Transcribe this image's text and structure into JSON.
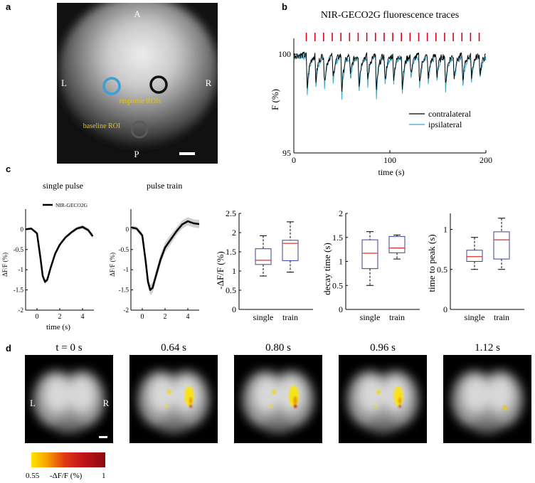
{
  "panel_labels": [
    "a",
    "b",
    "c",
    "d"
  ],
  "panel_a": {
    "orientation": {
      "anterior": "A",
      "posterior": "P",
      "left": "L",
      "right": "R"
    },
    "roi_labels": {
      "response": "response ROIs",
      "baseline": "baseline ROI"
    },
    "colors": {
      "left_roi": "#3b9fd8",
      "right_roi": "#111111",
      "baseline_roi": "#5a5a5a",
      "roi_text": "#e6c21a"
    }
  },
  "chart_data": [
    {
      "id": "b",
      "type": "line",
      "title": "NIR-GECO2G fluorescence traces",
      "xlabel": "time (s)",
      "ylabel": "F (%)",
      "xlim": [
        0,
        200
      ],
      "ylim": [
        95,
        100.8
      ],
      "xticks": [
        "0",
        "100",
        "200"
      ],
      "yticks": [
        "95",
        "100"
      ],
      "stimulus_times_s": [
        13,
        22,
        31,
        40,
        49,
        58,
        67,
        76,
        85,
        94,
        103,
        112,
        121,
        130,
        139,
        148,
        157,
        166,
        175,
        184,
        193
      ],
      "dip_depth_pct": [
        1.8,
        1.4,
        1.5,
        1.2,
        1.9,
        1.1,
        1.6,
        1.3,
        2.0,
        1.4,
        1.2,
        1.7,
        1.0,
        1.5,
        1.3,
        1.1,
        1.6,
        1.2,
        1.4,
        1.1,
        1.0
      ],
      "series": [
        {
          "name": "contralateral",
          "color": "#000000",
          "baseline": 99.95
        },
        {
          "name": "ipsilateral",
          "color": "#3aa7c9",
          "baseline": 99.9
        }
      ],
      "stimulus_color": "#e0001b"
    },
    {
      "id": "c-single",
      "type": "area",
      "title": "single pulse",
      "ylabel": "ΔF/F (%)",
      "xlabel": "time (s)",
      "xlim": [
        -1,
        5
      ],
      "ylim": [
        -2,
        0.5
      ],
      "xticks": [
        "0",
        "2",
        "4"
      ],
      "yticks": [
        "0",
        "-0.5",
        "-1",
        "-1.5",
        "-2"
      ],
      "legend": "NIR-GECO2G",
      "t": [
        -1,
        -0.5,
        0,
        0.3,
        0.5,
        0.7,
        0.9,
        1.2,
        1.6,
        2,
        2.5,
        3,
        3.5,
        4,
        4.5,
        4.9
      ],
      "mean": [
        0,
        0.02,
        -0.1,
        -0.7,
        -1.15,
        -1.3,
        -1.25,
        -0.95,
        -0.6,
        -0.38,
        -0.2,
        -0.08,
        0.02,
        0.06,
        -0.02,
        -0.17
      ],
      "sem": [
        0.03,
        0.03,
        0.04,
        0.05,
        0.06,
        0.06,
        0.06,
        0.06,
        0.05,
        0.05,
        0.04,
        0.04,
        0.04,
        0.05,
        0.05,
        0.05
      ]
    },
    {
      "id": "c-train",
      "type": "area",
      "title": "pulse train",
      "ylabel": "ΔF/F (%)",
      "xlim": [
        -1,
        5
      ],
      "ylim": [
        -2,
        0.5
      ],
      "xticks": [
        "0",
        "2",
        "4"
      ],
      "yticks": [
        "0",
        "-0.5",
        "-1",
        "-1.5",
        "-2"
      ],
      "t": [
        -1,
        -0.5,
        0,
        0.3,
        0.5,
        0.7,
        0.9,
        1.2,
        1.6,
        2,
        2.5,
        3,
        3.5,
        4,
        4.5,
        5
      ],
      "mean": [
        0.05,
        0.02,
        -0.15,
        -0.8,
        -1.3,
        -1.5,
        -1.45,
        -1.15,
        -0.75,
        -0.45,
        -0.25,
        -0.05,
        0.12,
        0.2,
        0.15,
        0.13
      ],
      "sem": [
        0.05,
        0.05,
        0.07,
        0.1,
        0.12,
        0.13,
        0.13,
        0.13,
        0.13,
        0.12,
        0.12,
        0.1,
        0.1,
        0.1,
        0.1,
        0.1
      ]
    },
    {
      "id": "c-box-amplitude",
      "type": "box",
      "ylabel": "-ΔF/F (%)",
      "ylim": [
        0,
        2.5
      ],
      "yticks": [
        "0",
        "0.5",
        "1",
        "1.5",
        "2",
        "2.5"
      ],
      "categories": [
        "single",
        "train"
      ],
      "boxes": [
        {
          "min": 0.87,
          "q1": 1.17,
          "median": 1.28,
          "q3": 1.58,
          "max": 1.92
        },
        {
          "min": 0.97,
          "q1": 1.27,
          "median": 1.72,
          "q3": 1.8,
          "max": 2.28
        }
      ]
    },
    {
      "id": "c-box-decay",
      "type": "box",
      "ylabel": "decay time (s)",
      "ylim": [
        0,
        2
      ],
      "yticks": [
        "0",
        "0.5",
        "1",
        "1.5",
        "2"
      ],
      "categories": [
        "single",
        "train"
      ],
      "boxes": [
        {
          "min": 0.5,
          "q1": 0.85,
          "median": 1.17,
          "q3": 1.45,
          "max": 1.62
        },
        {
          "min": 1.05,
          "q1": 1.18,
          "median": 1.28,
          "q3": 1.52,
          "max": 1.55
        }
      ]
    },
    {
      "id": "c-box-peak",
      "type": "box",
      "ylabel": "time to peak (s)",
      "ylim": [
        0,
        1.2
      ],
      "yticks": [
        "0",
        "0.5",
        "1"
      ],
      "categories": [
        "single",
        "train"
      ],
      "boxes": [
        {
          "min": 0.5,
          "q1": 0.6,
          "median": 0.66,
          "q3": 0.74,
          "max": 0.9
        },
        {
          "min": 0.5,
          "q1": 0.63,
          "median": 0.87,
          "q3": 0.97,
          "max": 1.14
        }
      ]
    }
  ],
  "box_colors": {
    "box": "#3b3f9a",
    "median": "#e03030",
    "whisker": "#000000"
  },
  "panel_d": {
    "frames": [
      {
        "label": "t = 0 s",
        "activity": 0
      },
      {
        "label": "0.64 s",
        "activity": 0.8
      },
      {
        "label": "0.80 s",
        "activity": 1.0
      },
      {
        "label": "0.96 s",
        "activity": 0.75
      },
      {
        "label": "1.12 s",
        "activity": 0.15
      }
    ],
    "side_labels": {
      "left": "L",
      "right": "R"
    },
    "colorbar": {
      "min_label": "0.55",
      "max_label": "1",
      "label": "-ΔF/F (%)"
    }
  }
}
